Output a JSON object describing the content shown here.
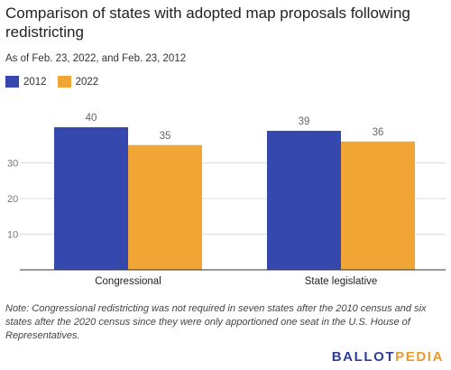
{
  "chart_data": {
    "type": "bar",
    "title": "Comparison of states with adopted map proposals following redistricting",
    "subtitle": "As of Feb. 23, 2022, and Feb. 23, 2012",
    "categories": [
      "Congressional",
      "State legislative"
    ],
    "series": [
      {
        "name": "2012",
        "values": [
          40,
          39
        ],
        "color": "#3548ad"
      },
      {
        "name": "2022",
        "values": [
          35,
          36
        ],
        "color": "#f0a534"
      }
    ],
    "y_ticks": [
      10,
      20,
      30
    ],
    "ylim": [
      0,
      40
    ],
    "xlabel": "",
    "ylabel": "",
    "legend_position": "top-left",
    "data_labels": true,
    "grid": true
  },
  "note": "Note: Congressional redistricting was not required in seven states after the 2010 census and six states after the 2020 census since they were only apportioned one seat in the U.S. House of Representatives.",
  "logo": {
    "part1": "BALLOT",
    "part2": "PEDIA"
  }
}
